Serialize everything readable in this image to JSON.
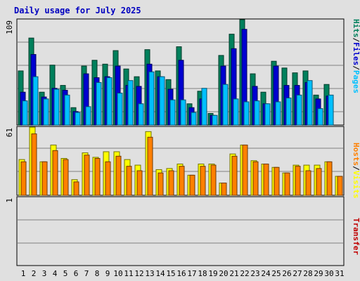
{
  "title": "Daily usage for July 2025",
  "colors": {
    "background": "#e0e0e0",
    "hits": "#00805c",
    "files": "#0000d0",
    "pages": "#00c0ff",
    "visits": "#ffff00",
    "hosts": "#ff8000",
    "transfer": "#c00000",
    "weekend_label": "#00805c"
  },
  "chart_data": [
    {
      "type": "bar",
      "panel": "hits-files-pages",
      "ylim": [
        0,
        109
      ],
      "y_tick_label": "109",
      "right_label_parts": [
        "Hits",
        "Files",
        "Pages"
      ],
      "categories": [
        "1",
        "2",
        "3",
        "4",
        "5",
        "6",
        "7",
        "8",
        "9",
        "10",
        "11",
        "12",
        "13",
        "14",
        "15",
        "16",
        "17",
        "18",
        "19",
        "20",
        "21",
        "22",
        "23",
        "24",
        "25",
        "26",
        "27",
        "28",
        "29",
        "30",
        "31"
      ],
      "weekend_days": [
        "5",
        "6",
        "12",
        "13",
        "19",
        "20",
        "26",
        "27"
      ],
      "series": [
        {
          "name": "Hits",
          "values": [
            56,
            90,
            34,
            62,
            41,
            18,
            61,
            67,
            63,
            77,
            58,
            50,
            78,
            56,
            47,
            81,
            22,
            35,
            12,
            72,
            94,
            109,
            53,
            34,
            66,
            59,
            54,
            56,
            31,
            42,
            0
          ]
        },
        {
          "name": "Files",
          "values": [
            34,
            73,
            29,
            38,
            36,
            14,
            53,
            49,
            50,
            61,
            41,
            40,
            63,
            50,
            37,
            67,
            18,
            27,
            10,
            61,
            79,
            99,
            40,
            22,
            61,
            41,
            41,
            44,
            27,
            30,
            0
          ]
        },
        {
          "name": "Pages",
          "values": [
            25,
            50,
            27,
            37,
            31,
            13,
            19,
            44,
            49,
            33,
            46,
            22,
            55,
            50,
            26,
            26,
            13,
            38,
            10,
            42,
            27,
            24,
            25,
            22,
            24,
            28,
            31,
            46,
            17,
            31,
            0
          ]
        }
      ]
    },
    {
      "type": "bar",
      "panel": "visits-hosts",
      "ylim": [
        0,
        61
      ],
      "y_tick_label": "61",
      "right_label_parts": [
        "Hosts",
        "Visits"
      ],
      "categories": [
        "1",
        "2",
        "3",
        "4",
        "5",
        "6",
        "7",
        "8",
        "9",
        "10",
        "11",
        "12",
        "13",
        "14",
        "15",
        "16",
        "17",
        "18",
        "19",
        "20",
        "21",
        "22",
        "23",
        "24",
        "25",
        "26",
        "27",
        "28",
        "29",
        "30",
        "31"
      ],
      "series": [
        {
          "name": "Visits",
          "values": [
            32,
            61,
            30,
            45,
            33,
            14,
            38,
            34,
            39,
            39,
            32,
            27,
            57,
            23,
            24,
            28,
            18,
            28,
            28,
            11,
            37,
            45,
            31,
            28,
            25,
            20,
            27,
            27,
            27,
            30,
            17
          ]
        },
        {
          "name": "Hosts",
          "values": [
            30,
            55,
            30,
            40,
            32,
            12,
            36,
            33,
            30,
            35,
            26,
            22,
            52,
            20,
            22,
            26,
            18,
            26,
            27,
            11,
            35,
            45,
            30,
            28,
            25,
            20,
            26,
            22,
            24,
            30,
            17
          ]
        }
      ]
    },
    {
      "type": "bar",
      "panel": "transfer",
      "ylim": [
        0,
        1
      ],
      "y_tick_label": "1",
      "right_label_parts": [
        "Transfer"
      ],
      "series": [
        {
          "name": "Transfer",
          "values": [
            0,
            0,
            0,
            0,
            0,
            0,
            0,
            0,
            0,
            0,
            0,
            0,
            0,
            0,
            0,
            0,
            0,
            0,
            0,
            0,
            0,
            0,
            0,
            0,
            0,
            0,
            0,
            0,
            0,
            0,
            0
          ]
        }
      ]
    }
  ]
}
